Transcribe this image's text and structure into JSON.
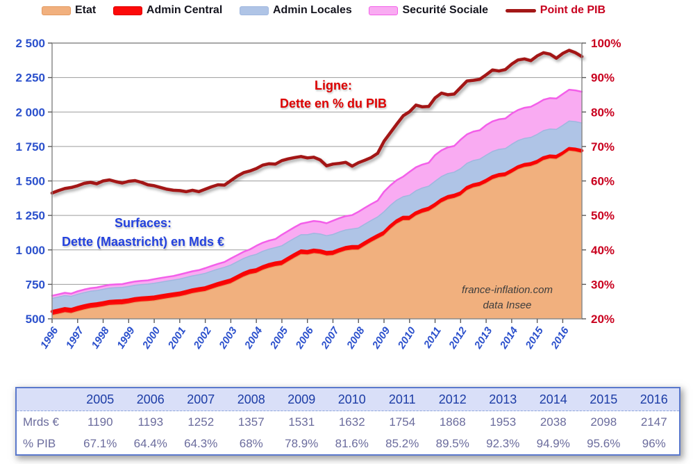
{
  "legend": {
    "items": [
      {
        "label": "Etat",
        "swatch": "area",
        "color": "#F1B07E",
        "border": "#E39A61",
        "text_color": "#15151f"
      },
      {
        "label": "Admin Central",
        "swatch": "area",
        "color": "#FC0A0A",
        "border": "#E00000",
        "text_color": "#15151f"
      },
      {
        "label": "Admin Locales",
        "swatch": "area",
        "color": "#AFC4E6",
        "border": "#9FB7DF",
        "text_color": "#15151f"
      },
      {
        "label": "Securité Sociale",
        "swatch": "area",
        "color": "#F9ABF2",
        "border": "#F35FE9",
        "text_color": "#15151f"
      },
      {
        "label": "Point de PIB",
        "swatch": "line",
        "color": "#A31717",
        "border": "#A31717",
        "text_color": "#c8001e"
      }
    ]
  },
  "annotations": {
    "line_note_1": "Ligne:",
    "line_note_2": "Dette en % du PIB",
    "surface_note_1": "Surfaces:",
    "surface_note_2": "Dette (Maastricht) en Mds €",
    "watermark_1": "france-inflation.com",
    "watermark_2": "data Insee"
  },
  "chart_data": {
    "type": "area",
    "subtype": "overlapping-cumulative-areas-with-line",
    "x_unit": "quarter",
    "x_start_year": 1996,
    "x_end_year": 2016,
    "x_labels": [
      "1996",
      "1997",
      "1998",
      "1999",
      "2000",
      "2001",
      "2002",
      "2003",
      "2004",
      "2005",
      "2006",
      "2007",
      "2008",
      "2009",
      "2010",
      "2011",
      "2012",
      "2013",
      "2014",
      "2015",
      "2016"
    ],
    "left_axis": {
      "title": "Dette (Maastricht) en Mds €",
      "min": 500,
      "max": 2500,
      "step": 250,
      "tick_labels": [
        "2 500",
        "2 250",
        "2 000",
        "1 750",
        "1 500",
        "1 250",
        "1 000",
        "750",
        "500"
      ],
      "color": "#2b50cc"
    },
    "right_axis": {
      "title": "Dette en % du PIB",
      "min": 20,
      "max": 100,
      "step": 10,
      "tick_labels": [
        "100%",
        "90%",
        "80%",
        "70%",
        "60%",
        "50%",
        "40%",
        "30%",
        "20%"
      ],
      "color": "#c9001e"
    },
    "grid": "horizontal",
    "legend_position": "top",
    "series": [
      {
        "name": "Etat",
        "type": "area",
        "mode": "cumulative-boundary",
        "axis": "left",
        "fill": "#F1B07E",
        "stroke": "#E99E63",
        "stroke_width": 1.2,
        "values": [
          525,
          535,
          546,
          540,
          554,
          566,
          576,
          581,
          589,
          598,
          601,
          603,
          610,
          619,
          624,
          627,
          631,
          639,
          647,
          654,
          661,
          672,
          684,
          692,
          699,
          715,
          730,
          743,
          756,
          780,
          804,
          822,
          831,
          853,
          869,
          880,
          887,
          915,
          942,
          967,
          964,
          974,
          969,
          957,
          960,
          978,
          993,
          1000,
          1000,
          1028,
          1055,
          1080,
          1104,
          1150,
          1188,
          1213,
          1214,
          1247,
          1267,
          1280,
          1308,
          1342,
          1364,
          1374,
          1392,
          1431,
          1451,
          1461,
          1483,
          1510,
          1525,
          1531,
          1556,
          1583,
          1599,
          1606,
          1622,
          1649,
          1661,
          1658,
          1685,
          1717,
          1712,
          1702
        ]
      },
      {
        "name": "Admin Central",
        "type": "area",
        "mode": "cumulative-boundary",
        "axis": "left",
        "fill": "#FC0A0A",
        "stroke": "#F70505",
        "stroke_width": 4.5,
        "values": [
          553,
          563,
          574,
          568,
          582,
          594,
          604,
          609,
          617,
          626,
          629,
          631,
          637,
          646,
          651,
          654,
          658,
          666,
          674,
          681,
          687,
          698,
          710,
          718,
          725,
          741,
          756,
          769,
          782,
          806,
          830,
          848,
          856,
          878,
          894,
          905,
          912,
          940,
          967,
          992,
          988,
          998,
          993,
          981,
          984,
          1002,
          1017,
          1024,
          1024,
          1052,
          1079,
          1104,
          1127,
          1173,
          1211,
          1236,
          1236,
          1269,
          1289,
          1302,
          1330,
          1364,
          1386,
          1396,
          1413,
          1452,
          1472,
          1482,
          1504,
          1531,
          1546,
          1552,
          1576,
          1603,
          1619,
          1626,
          1642,
          1669,
          1681,
          1678,
          1703,
          1735,
          1730,
          1720
        ]
      },
      {
        "name": "Admin Locales",
        "type": "area",
        "mode": "cumulative-boundary",
        "axis": "left",
        "fill": "#AFC4E6",
        "stroke": "#9FB7DF",
        "stroke_width": 1.5,
        "values": [
          648,
          658,
          669,
          663,
          678,
          690,
          700,
          705,
          714,
          723,
          726,
          728,
          735,
          744,
          749,
          752,
          758,
          766,
          774,
          781,
          789,
          800,
          812,
          820,
          830,
          846,
          861,
          874,
          890,
          914,
          938,
          956,
          968,
          990,
          1006,
          1017,
          1030,
          1058,
          1085,
          1110,
          1110,
          1120,
          1115,
          1103,
          1112,
          1130,
          1145,
          1152,
          1159,
          1187,
          1214,
          1239,
          1277,
          1323,
          1361,
          1386,
          1396,
          1429,
          1449,
          1462,
          1498,
          1532,
          1554,
          1564,
          1589,
          1628,
          1648,
          1658,
          1687,
          1714,
          1729,
          1735,
          1766,
          1793,
          1809,
          1816,
          1838,
          1865,
          1877,
          1874,
          1903,
          1935,
          1930,
          1920
        ]
      },
      {
        "name": "Securité Sociale",
        "type": "area",
        "mode": "cumulative-boundary",
        "axis": "left",
        "fill": "#F9ABF2",
        "stroke": "#F35FE9",
        "stroke_width": 2.5,
        "values": [
          668,
          678,
          689,
          683,
          700,
          712,
          722,
          727,
          738,
          747,
          750,
          752,
          762,
          771,
          776,
          779,
          788,
          796,
          804,
          811,
          822,
          833,
          845,
          853,
          868,
          884,
          899,
          912,
          938,
          962,
          986,
          1004,
          1030,
          1052,
          1068,
          1079,
          1110,
          1138,
          1165,
          1190,
          1200,
          1210,
          1205,
          1193,
          1212,
          1230,
          1245,
          1252,
          1277,
          1305,
          1332,
          1357,
          1422,
          1468,
          1506,
          1531,
          1566,
          1599,
          1619,
          1632,
          1688,
          1722,
          1744,
          1754,
          1799,
          1838,
          1858,
          1868,
          1905,
          1932,
          1947,
          1953,
          1988,
          2015,
          2031,
          2038,
          2062,
          2089,
          2101,
          2098,
          2130,
          2162,
          2157,
          2147
        ]
      },
      {
        "name": "Point de PIB",
        "type": "line",
        "axis": "right",
        "stroke": "#A31717",
        "stroke_width": 4.5,
        "values": [
          56.5,
          57.2,
          57.8,
          58.1,
          58.6,
          59.3,
          59.6,
          59.2,
          60.0,
          60.3,
          59.8,
          59.4,
          59.9,
          60.1,
          59.6,
          58.9,
          58.6,
          58.1,
          57.6,
          57.3,
          57.2,
          56.9,
          57.3,
          56.9,
          57.6,
          58.3,
          58.9,
          58.8,
          60.1,
          61.4,
          62.4,
          62.9,
          63.6,
          64.6,
          65.0,
          64.9,
          65.9,
          66.4,
          66.8,
          67.1,
          66.7,
          66.9,
          66.1,
          64.4,
          64.9,
          65.1,
          65.4,
          64.3,
          65.3,
          66.0,
          66.8,
          68.0,
          71.5,
          74.0,
          76.5,
          78.9,
          80.1,
          82.0,
          81.5,
          81.6,
          84.1,
          85.5,
          85.0,
          85.2,
          87.1,
          89.0,
          89.2,
          89.5,
          90.8,
          92.2,
          91.9,
          92.3,
          93.9,
          95.1,
          95.4,
          94.9,
          96.3,
          97.2,
          96.8,
          95.6,
          97.0,
          97.9,
          97.2,
          96.1
        ]
      }
    ]
  },
  "table": {
    "years": [
      "2005",
      "2006",
      "2007",
      "2008",
      "2009",
      "2010",
      "2011",
      "2012",
      "2013",
      "2014",
      "2015",
      "2016"
    ],
    "rows": [
      {
        "label": "Mrds €",
        "values": [
          "1190",
          "1193",
          "1252",
          "1357",
          "1531",
          "1632",
          "1754",
          "1868",
          "1953",
          "2038",
          "2098",
          "2147"
        ]
      },
      {
        "label": "% PIB",
        "values": [
          "67.1%",
          "64.4%",
          "64.3%",
          "68%",
          "78.9%",
          "81.6%",
          "85.2%",
          "89.5%",
          "92.3%",
          "94.9%",
          "95.6%",
          "96%"
        ]
      }
    ]
  }
}
